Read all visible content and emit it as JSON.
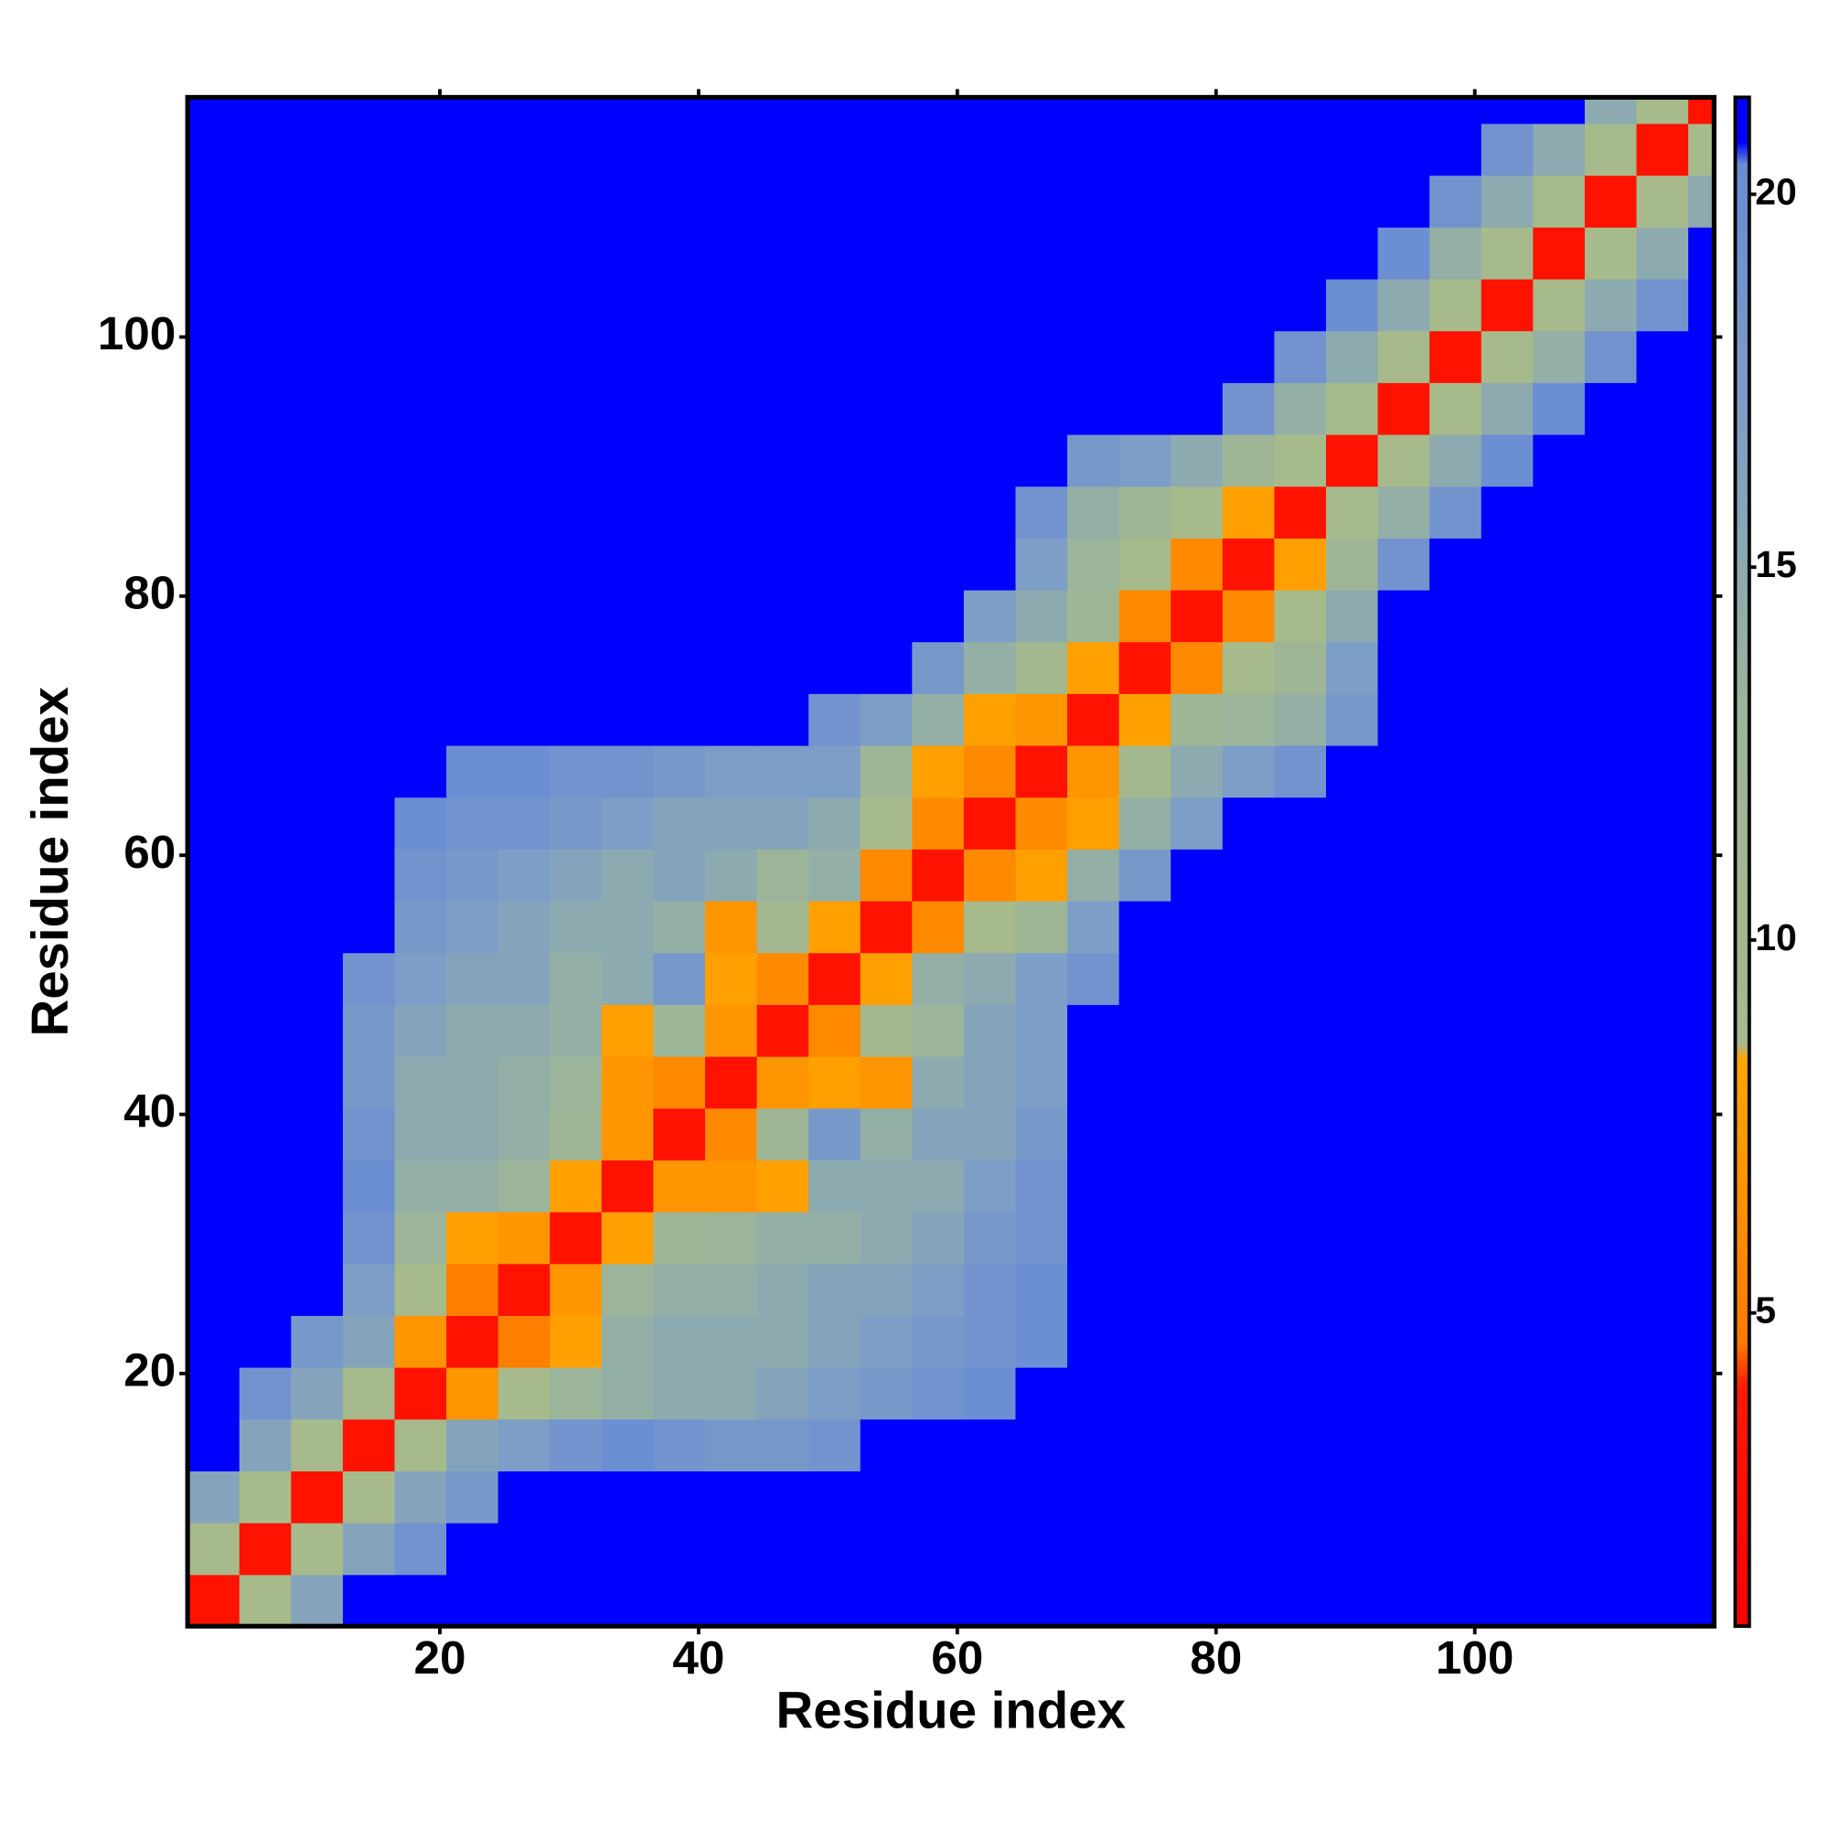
{
  "chart_data": {
    "type": "heatmap",
    "xlabel": "Residue index",
    "ylabel": "Residue index",
    "x_bins": [
      0.5,
      4.5,
      8.5,
      12.5,
      16.5,
      20.5,
      24.5,
      28.5,
      32.5,
      36.5,
      40.5,
      44.5,
      48.5,
      52.5,
      56.5,
      60.5,
      64.5,
      68.5,
      72.5,
      76.5,
      80.5,
      84.5,
      88.5,
      92.5,
      96.5,
      100.5,
      104.5,
      108.5,
      112.5,
      116.5,
      118.5
    ],
    "y_bins": [
      0.5,
      4.5,
      8.5,
      12.5,
      16.5,
      20.5,
      24.5,
      28.5,
      32.5,
      36.5,
      40.5,
      44.5,
      48.5,
      52.5,
      56.5,
      60.5,
      64.5,
      68.5,
      72.5,
      76.5,
      80.5,
      84.5,
      88.5,
      92.5,
      96.5,
      100.5,
      104.5,
      108.5,
      112.5,
      116.5,
      118.5
    ],
    "xlim": [
      0.5,
      118.5
    ],
    "ylim": [
      0.5,
      118.5
    ],
    "xticks": [
      20,
      40,
      60,
      80,
      100
    ],
    "yticks": [
      20,
      40,
      60,
      80,
      100
    ],
    "zlim": [
      0.8,
      21.3
    ],
    "zticks": [
      5,
      10,
      15,
      20
    ],
    "colorscale": [
      [
        0.8,
        "#ff0000"
      ],
      [
        4,
        "#ff1a00"
      ],
      [
        4.6,
        "#ff7a00"
      ],
      [
        8.4,
        "#ffa500"
      ],
      [
        8.6,
        "#a8ba8a"
      ],
      [
        13,
        "#9cb59a"
      ],
      [
        17,
        "#7d9ec6"
      ],
      [
        20.4,
        "#6a8cd4"
      ],
      [
        20.7,
        "#0000ff"
      ],
      [
        21.3,
        "#0000ff"
      ]
    ],
    "values": [
      [
        3,
        9,
        16,
        21,
        21,
        21,
        21,
        21,
        21,
        21,
        21,
        21,
        21,
        21,
        21,
        21,
        21,
        21,
        21,
        21,
        21,
        21,
        21,
        21,
        21,
        21,
        21,
        21,
        21,
        21
      ],
      [
        9,
        3,
        9,
        16,
        19,
        21,
        21,
        21,
        21,
        21,
        21,
        21,
        21,
        21,
        21,
        21,
        21,
        21,
        21,
        21,
        21,
        21,
        21,
        21,
        21,
        21,
        21,
        21,
        21,
        21
      ],
      [
        16,
        9,
        3,
        9,
        16,
        18,
        21,
        21,
        21,
        21,
        21,
        21,
        21,
        21,
        21,
        21,
        21,
        21,
        21,
        21,
        21,
        21,
        21,
        21,
        21,
        21,
        21,
        21,
        21,
        21
      ],
      [
        21,
        16,
        9,
        3,
        9,
        16,
        17,
        19,
        20,
        19,
        18,
        18,
        19,
        21,
        21,
        21,
        21,
        21,
        21,
        21,
        21,
        21,
        21,
        21,
        21,
        21,
        21,
        21,
        21,
        21
      ],
      [
        21,
        19,
        16,
        9,
        3,
        7,
        9,
        13,
        14,
        15,
        15,
        16,
        17,
        18,
        19,
        20,
        21,
        21,
        21,
        21,
        21,
        21,
        21,
        21,
        21,
        21,
        21,
        21,
        21,
        21
      ],
      [
        21,
        21,
        18,
        16,
        7,
        3,
        5,
        8,
        14,
        15,
        15,
        15,
        16,
        17,
        18,
        19,
        20,
        21,
        21,
        21,
        21,
        21,
        21,
        21,
        21,
        21,
        21,
        21,
        21,
        21
      ],
      [
        21,
        21,
        21,
        17,
        9,
        5,
        3,
        7,
        13,
        14,
        14,
        15,
        16,
        16,
        17,
        19,
        20,
        21,
        21,
        21,
        21,
        21,
        21,
        21,
        21,
        21,
        21,
        21,
        21,
        21
      ],
      [
        21,
        21,
        21,
        19,
        13,
        8,
        7,
        3,
        8,
        12,
        13,
        14,
        14,
        15,
        16,
        18,
        19,
        21,
        21,
        21,
        21,
        21,
        21,
        21,
        21,
        21,
        21,
        21,
        21,
        21
      ],
      [
        21,
        21,
        21,
        20,
        14,
        14,
        13,
        8,
        3,
        7,
        7,
        8,
        15,
        15,
        15,
        17,
        19,
        21,
        21,
        21,
        21,
        21,
        21,
        21,
        21,
        21,
        21,
        21,
        21,
        21
      ],
      [
        21,
        21,
        21,
        19,
        15,
        15,
        14,
        12,
        7,
        3,
        6,
        12,
        18,
        14,
        16,
        16,
        18,
        21,
        21,
        21,
        21,
        21,
        21,
        21,
        21,
        21,
        21,
        21,
        21,
        21
      ],
      [
        21,
        21,
        21,
        18,
        15,
        15,
        14,
        13,
        7,
        6,
        3,
        7,
        8,
        7,
        15,
        16,
        17,
        21,
        21,
        21,
        21,
        21,
        21,
        21,
        21,
        21,
        21,
        21,
        21,
        21
      ],
      [
        21,
        21,
        21,
        18,
        16,
        15,
        15,
        14,
        8,
        12,
        7,
        3,
        6,
        10,
        13,
        16,
        17,
        21,
        21,
        21,
        21,
        21,
        21,
        21,
        21,
        21,
        21,
        21,
        21,
        21
      ],
      [
        21,
        21,
        21,
        19,
        17,
        16,
        16,
        14,
        15,
        18,
        8,
        6,
        3,
        8,
        14,
        15,
        17,
        19,
        21,
        21,
        21,
        21,
        21,
        21,
        21,
        21,
        21,
        21,
        21,
        21
      ],
      [
        21,
        21,
        21,
        21,
        18,
        17,
        16,
        15,
        15,
        14,
        7,
        10,
        8,
        3,
        6,
        9,
        12,
        17,
        21,
        21,
        21,
        21,
        21,
        21,
        21,
        21,
        21,
        21,
        21,
        21
      ],
      [
        21,
        21,
        21,
        21,
        19,
        18,
        17,
        16,
        15,
        16,
        15,
        13,
        14,
        6,
        3,
        6,
        8,
        14,
        18,
        21,
        21,
        21,
        21,
        21,
        21,
        21,
        21,
        21,
        21,
        21
      ],
      [
        21,
        21,
        21,
        21,
        20,
        19,
        19,
        18,
        17,
        16,
        16,
        16,
        15,
        9,
        6,
        3,
        6,
        8,
        14,
        17,
        21,
        21,
        21,
        21,
        21,
        21,
        21,
        21,
        21,
        21
      ],
      [
        21,
        21,
        21,
        21,
        21,
        20,
        20,
        19,
        19,
        18,
        17,
        17,
        17,
        12,
        8,
        6,
        3,
        7,
        10,
        15,
        17,
        19,
        21,
        21,
        21,
        21,
        21,
        21,
        21,
        21
      ],
      [
        21,
        21,
        21,
        21,
        21,
        21,
        21,
        21,
        21,
        21,
        21,
        21,
        19,
        17,
        14,
        8,
        7,
        3,
        8,
        12,
        13,
        14,
        18,
        21,
        21,
        21,
        21,
        21,
        21,
        21
      ],
      [
        21,
        21,
        21,
        21,
        21,
        21,
        21,
        21,
        21,
        21,
        21,
        21,
        21,
        21,
        18,
        14,
        10,
        8,
        3,
        6,
        9,
        12,
        17,
        21,
        21,
        21,
        21,
        21,
        21,
        21
      ],
      [
        21,
        21,
        21,
        21,
        21,
        21,
        21,
        21,
        21,
        21,
        21,
        21,
        21,
        21,
        21,
        17,
        15,
        12,
        6,
        3,
        6,
        9,
        15,
        21,
        21,
        21,
        21,
        21,
        21,
        21
      ],
      [
        21,
        21,
        21,
        21,
        21,
        21,
        21,
        21,
        21,
        21,
        21,
        21,
        21,
        21,
        21,
        21,
        17,
        13,
        9,
        6,
        3,
        8,
        12,
        19,
        21,
        21,
        21,
        21,
        21,
        21
      ],
      [
        21,
        21,
        21,
        21,
        21,
        21,
        21,
        21,
        21,
        21,
        21,
        21,
        21,
        21,
        21,
        21,
        19,
        14,
        12,
        9,
        8,
        3,
        9,
        14,
        19,
        21,
        21,
        21,
        21,
        21
      ],
      [
        21,
        21,
        21,
        21,
        21,
        21,
        21,
        21,
        21,
        21,
        21,
        21,
        21,
        21,
        21,
        21,
        21,
        18,
        17,
        15,
        12,
        9,
        3,
        9,
        15,
        20,
        21,
        21,
        21,
        21
      ],
      [
        21,
        21,
        21,
        21,
        21,
        21,
        21,
        21,
        21,
        21,
        21,
        21,
        21,
        21,
        21,
        21,
        21,
        21,
        21,
        21,
        19,
        14,
        9,
        3,
        9,
        15,
        20,
        21,
        21,
        21
      ],
      [
        21,
        21,
        21,
        21,
        21,
        21,
        21,
        21,
        21,
        21,
        21,
        21,
        21,
        21,
        21,
        21,
        21,
        21,
        21,
        21,
        21,
        19,
        15,
        9,
        3,
        9,
        14,
        19,
        21,
        21
      ],
      [
        21,
        21,
        21,
        21,
        21,
        21,
        21,
        21,
        21,
        21,
        21,
        21,
        21,
        21,
        21,
        21,
        21,
        21,
        21,
        21,
        21,
        21,
        20,
        15,
        9,
        3,
        9,
        15,
        19,
        21
      ],
      [
        21,
        21,
        21,
        21,
        21,
        21,
        21,
        21,
        21,
        21,
        21,
        21,
        21,
        21,
        21,
        21,
        21,
        21,
        21,
        21,
        21,
        21,
        21,
        20,
        14,
        9,
        3,
        9,
        15,
        21
      ],
      [
        21,
        21,
        21,
        21,
        21,
        21,
        21,
        21,
        21,
        21,
        21,
        21,
        21,
        21,
        21,
        21,
        21,
        21,
        21,
        21,
        21,
        21,
        21,
        21,
        19,
        15,
        9,
        3,
        9,
        15
      ],
      [
        21,
        21,
        21,
        21,
        21,
        21,
        21,
        21,
        21,
        21,
        21,
        21,
        21,
        21,
        21,
        21,
        21,
        21,
        21,
        21,
        21,
        21,
        21,
        21,
        21,
        19,
        15,
        9,
        3,
        9
      ],
      [
        21,
        21,
        21,
        21,
        21,
        21,
        21,
        21,
        21,
        21,
        21,
        21,
        21,
        21,
        21,
        21,
        21,
        21,
        21,
        21,
        21,
        21,
        21,
        21,
        21,
        21,
        21,
        15,
        9,
        3
      ]
    ]
  }
}
